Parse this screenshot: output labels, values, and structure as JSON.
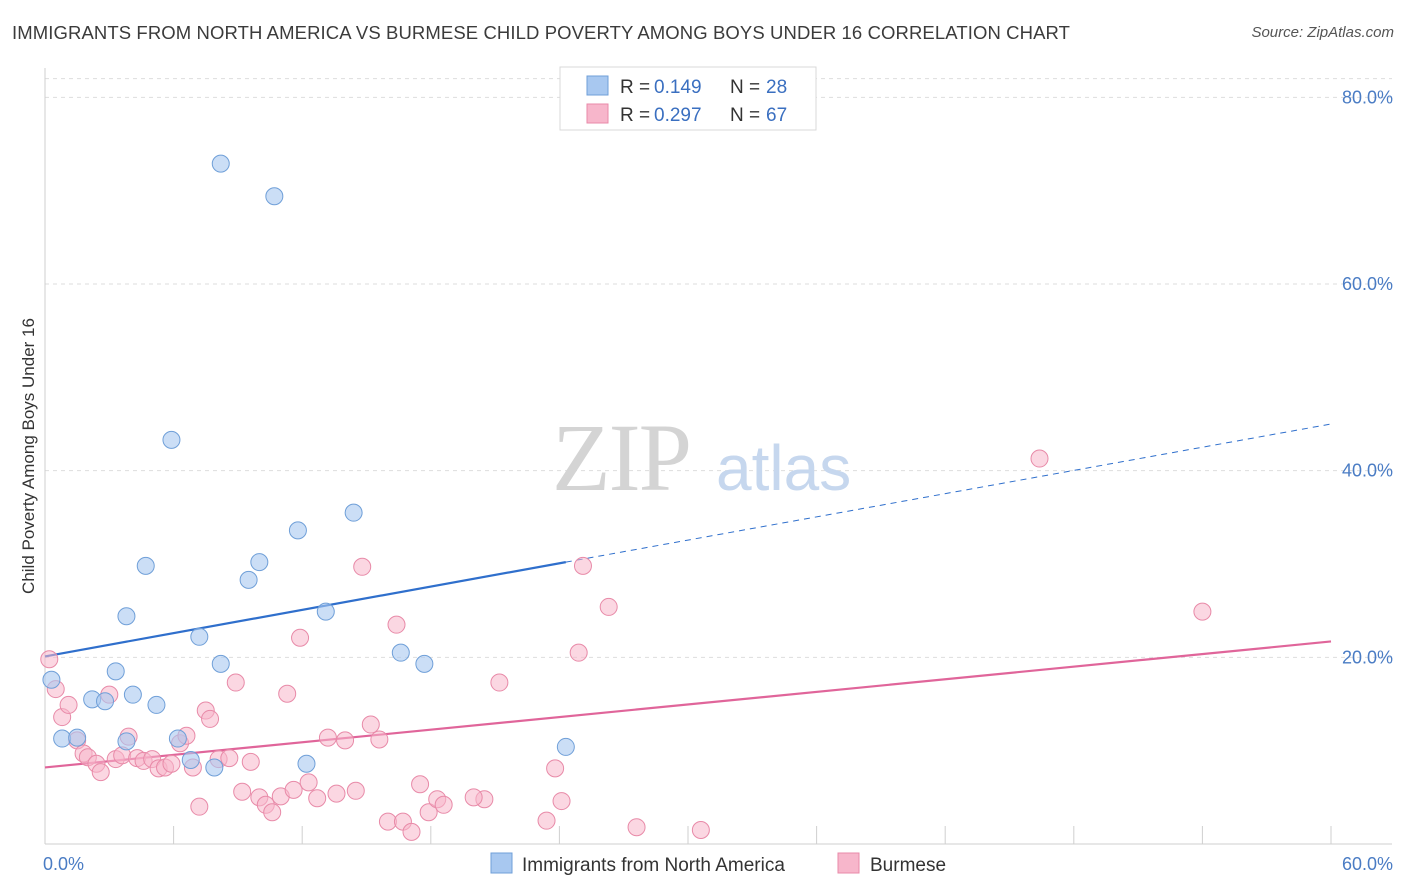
{
  "title": "IMMIGRANTS FROM NORTH AMERICA VS BURMESE CHILD POVERTY AMONG BOYS UNDER 16 CORRELATION CHART",
  "source": "Source: ZipAtlas.com",
  "watermark": {
    "zip": "ZIP",
    "atlas": "atlas"
  },
  "colors": {
    "series_blue_fill": "#a8c8f0",
    "series_blue_stroke": "#6f9fd8",
    "series_blue_line": "#2f6fcc",
    "series_pink_fill": "#f7b6cb",
    "series_pink_stroke": "#e88aa8",
    "series_pink_line": "#e0659a",
    "tick": "#4a7cc4",
    "grid": "#dddddd"
  },
  "legend_top": {
    "rows": [
      {
        "r_label": "R = ",
        "r_value": "0.149",
        "n_label": "N = ",
        "n_value": "28"
      },
      {
        "r_label": "R = ",
        "r_value": "0.297",
        "n_label": "N = ",
        "n_value": "67"
      }
    ]
  },
  "chart_data": {
    "type": "scatter",
    "title": "IMMIGRANTS FROM NORTH AMERICA VS BURMESE CHILD POVERTY AMONG BOYS UNDER 16 CORRELATION CHART",
    "xlabel": "",
    "ylabel": "Child Poverty Among Boys Under 16",
    "xlim": [
      0,
      60
    ],
    "ylim": [
      0,
      84
    ],
    "x_tick_labels": [
      "0.0%",
      "60.0%"
    ],
    "y_ticks": [
      20,
      40,
      60,
      80
    ],
    "y_tick_labels": [
      "20.0%",
      "40.0%",
      "60.0%",
      "80.0%"
    ],
    "grid": true,
    "legend_position": "bottom",
    "series": [
      {
        "name": "Immigrants from North America",
        "r": 0.149,
        "n": 28,
        "trend": {
          "x0": 0,
          "y0": 20.1,
          "x1": 24.3,
          "y1": 30.2,
          "dash_to_x": 60,
          "dash_to_y": 45.0
        },
        "points": [
          [
            0.3,
            17.6
          ],
          [
            0.8,
            11.3
          ],
          [
            1.5,
            11.4
          ],
          [
            2.2,
            15.5
          ],
          [
            2.8,
            15.3
          ],
          [
            3.3,
            18.5
          ],
          [
            3.8,
            24.4
          ],
          [
            4.1,
            16.0
          ],
          [
            4.7,
            29.8
          ],
          [
            5.2,
            14.9
          ],
          [
            5.9,
            43.3
          ],
          [
            6.2,
            11.3
          ],
          [
            6.8,
            9.0
          ],
          [
            7.2,
            22.2
          ],
          [
            7.9,
            8.2
          ],
          [
            8.2,
            19.3
          ],
          [
            8.2,
            72.9
          ],
          [
            9.5,
            28.3
          ],
          [
            10.0,
            30.2
          ],
          [
            10.7,
            69.4
          ],
          [
            11.8,
            33.6
          ],
          [
            12.2,
            8.6
          ],
          [
            13.1,
            24.9
          ],
          [
            14.4,
            35.5
          ],
          [
            16.6,
            20.5
          ],
          [
            17.7,
            19.3
          ],
          [
            24.3,
            10.4
          ],
          [
            3.8,
            11.0
          ]
        ]
      },
      {
        "name": "Burmese",
        "r": 0.297,
        "n": 67,
        "trend": {
          "x0": 0,
          "y0": 8.2,
          "x1": 60,
          "y1": 21.7
        },
        "points": [
          [
            0.2,
            19.8
          ],
          [
            0.5,
            16.6
          ],
          [
            0.8,
            13.6
          ],
          [
            1.1,
            14.9
          ],
          [
            1.5,
            11.1
          ],
          [
            1.8,
            9.7
          ],
          [
            2.0,
            9.3
          ],
          [
            2.4,
            8.6
          ],
          [
            2.6,
            7.7
          ],
          [
            3.0,
            16.0
          ],
          [
            3.3,
            9.1
          ],
          [
            3.6,
            9.5
          ],
          [
            3.9,
            11.5
          ],
          [
            4.3,
            9.2
          ],
          [
            4.6,
            8.9
          ],
          [
            5.0,
            9.1
          ],
          [
            5.3,
            8.1
          ],
          [
            5.6,
            8.2
          ],
          [
            5.9,
            8.6
          ],
          [
            6.3,
            10.8
          ],
          [
            6.6,
            11.6
          ],
          [
            6.9,
            8.2
          ],
          [
            7.2,
            4.0
          ],
          [
            7.5,
            14.3
          ],
          [
            7.7,
            13.4
          ],
          [
            8.1,
            9.1
          ],
          [
            8.6,
            9.2
          ],
          [
            8.9,
            17.3
          ],
          [
            9.2,
            5.6
          ],
          [
            9.6,
            8.8
          ],
          [
            10.0,
            5.0
          ],
          [
            10.3,
            4.2
          ],
          [
            10.6,
            3.4
          ],
          [
            11.0,
            5.1
          ],
          [
            11.3,
            16.1
          ],
          [
            11.6,
            5.8
          ],
          [
            11.9,
            22.1
          ],
          [
            12.3,
            6.6
          ],
          [
            12.7,
            4.9
          ],
          [
            13.2,
            11.4
          ],
          [
            13.6,
            5.4
          ],
          [
            14.0,
            11.1
          ],
          [
            14.5,
            5.7
          ],
          [
            14.8,
            29.7
          ],
          [
            15.2,
            12.8
          ],
          [
            15.6,
            11.2
          ],
          [
            16.0,
            2.4
          ],
          [
            16.4,
            23.5
          ],
          [
            16.7,
            2.4
          ],
          [
            17.1,
            1.3
          ],
          [
            17.5,
            6.4
          ],
          [
            17.9,
            3.4
          ],
          [
            18.3,
            4.8
          ],
          [
            18.6,
            4.2
          ],
          [
            20.5,
            4.8
          ],
          [
            21.2,
            17.3
          ],
          [
            23.4,
            2.5
          ],
          [
            23.8,
            8.1
          ],
          [
            24.1,
            4.6
          ],
          [
            24.9,
            20.5
          ],
          [
            25.1,
            29.8
          ],
          [
            26.3,
            25.4
          ],
          [
            27.6,
            1.8
          ],
          [
            30.6,
            1.5
          ],
          [
            46.4,
            41.3
          ],
          [
            54.0,
            24.9
          ],
          [
            20.0,
            5.0
          ]
        ]
      }
    ]
  }
}
